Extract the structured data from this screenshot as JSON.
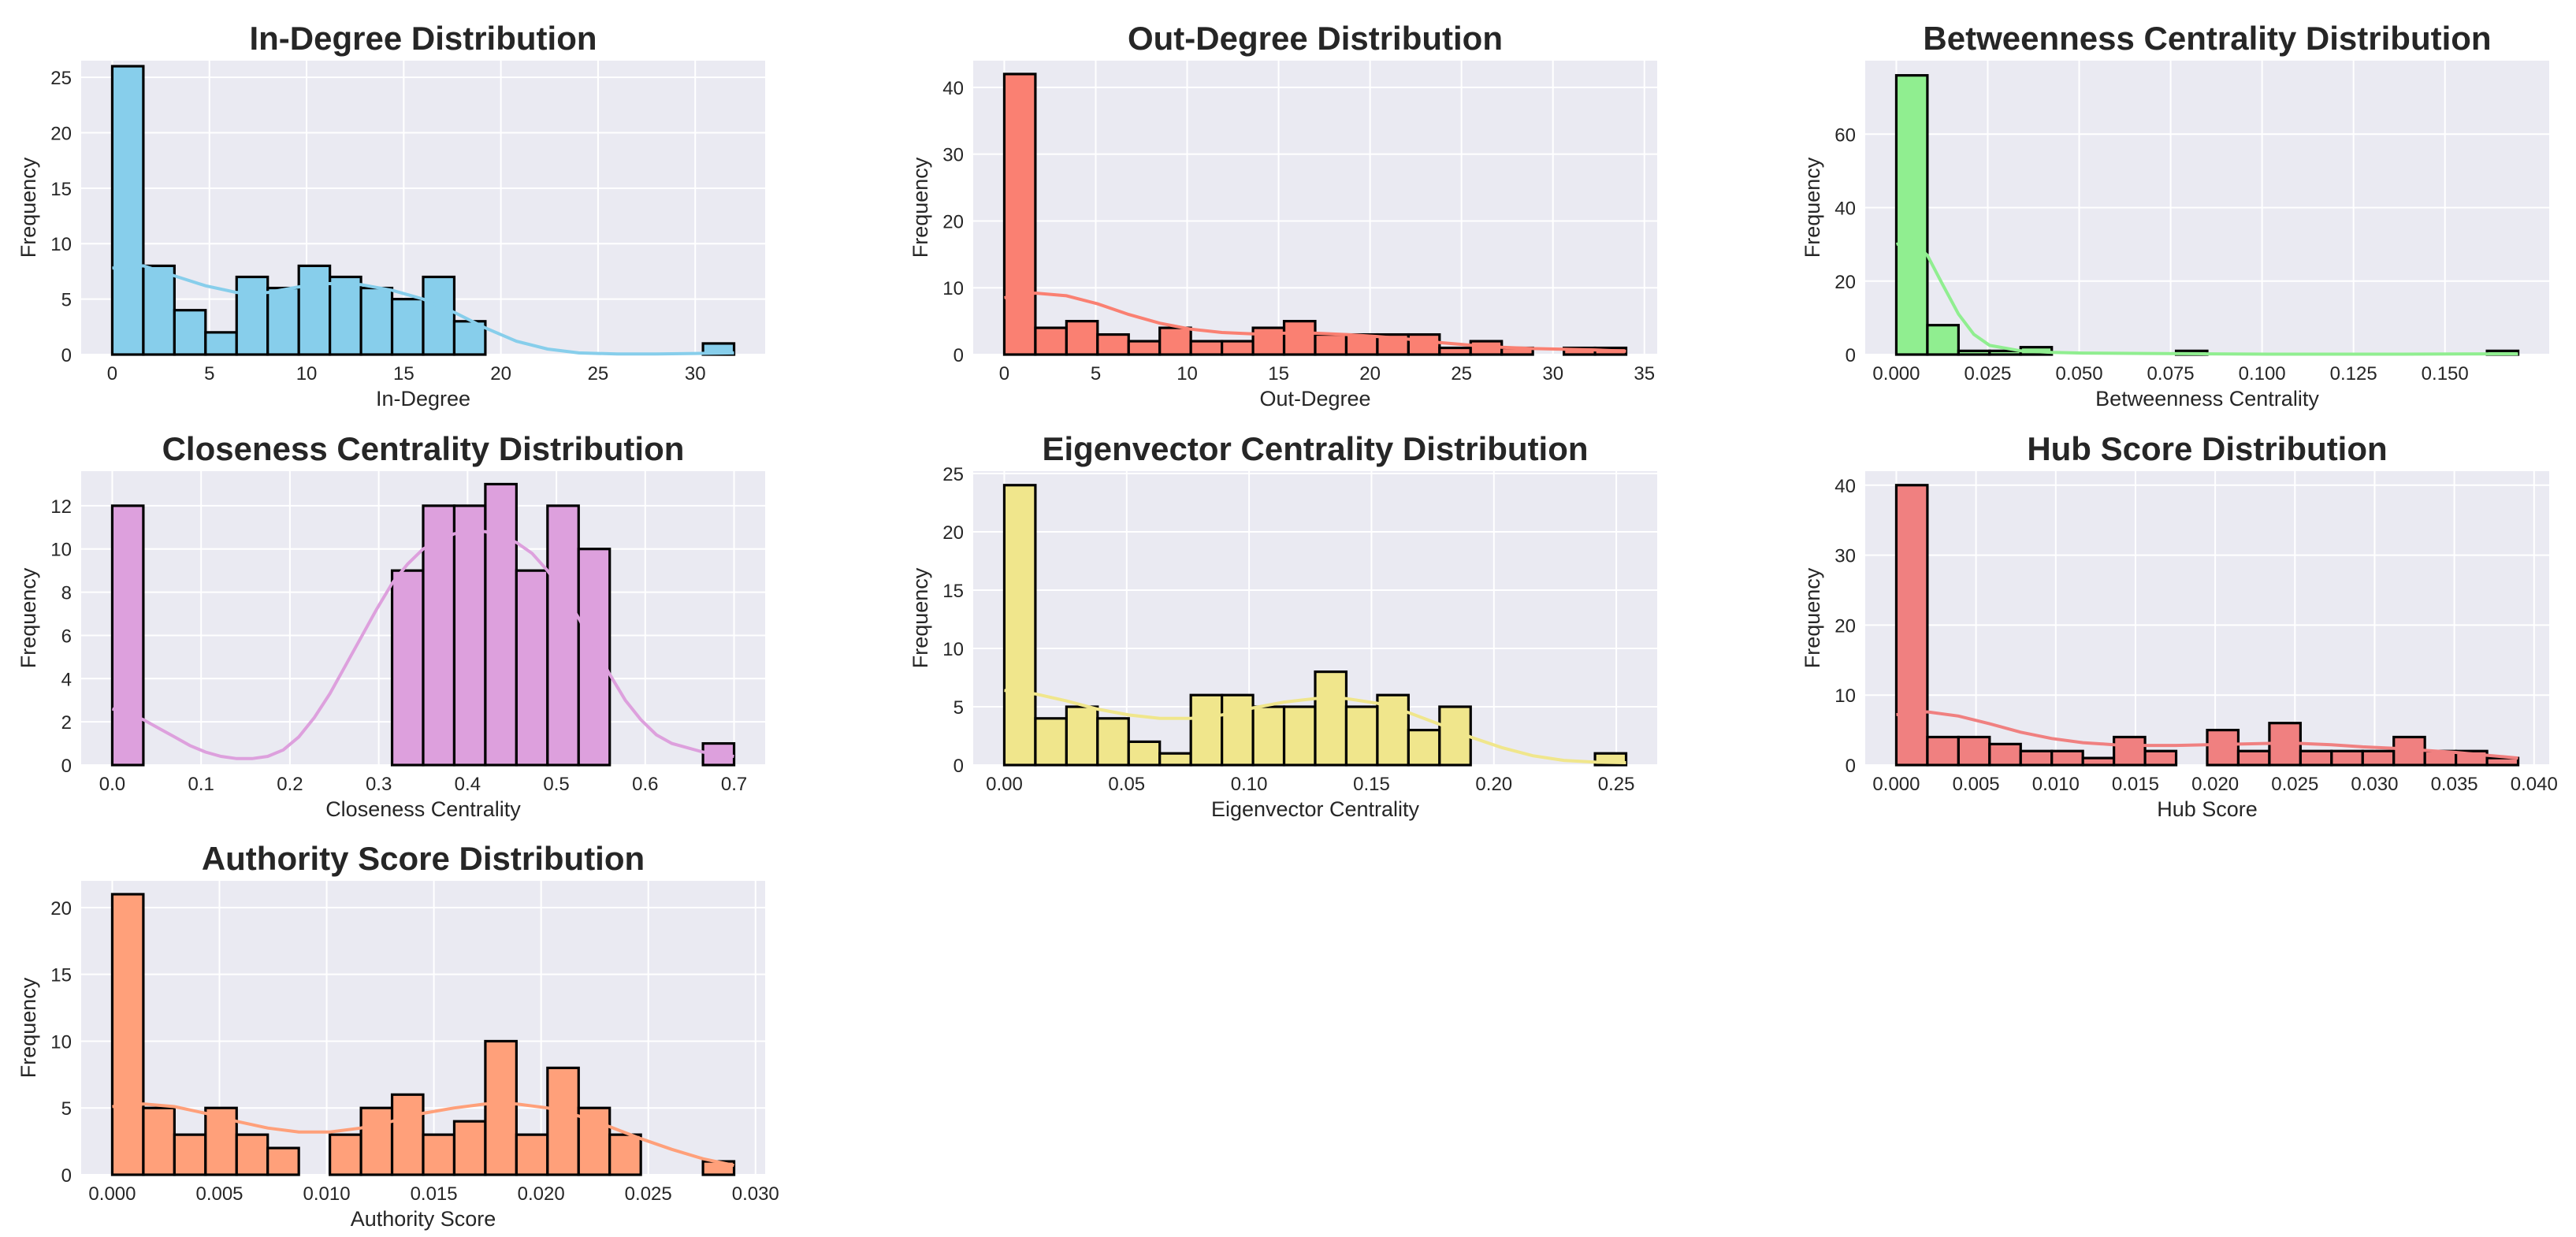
{
  "chart_data": [
    {
      "type": "bar",
      "title": "In-Degree Distribution",
      "xlabel": "In-Degree",
      "ylabel": "Frequency",
      "xlim": [
        -1.6,
        33.6
      ],
      "ylim": [
        0,
        26.5
      ],
      "xticks": [
        0,
        5,
        10,
        15,
        20,
        25,
        30
      ],
      "xtick_labels": [
        "0",
        "5",
        "10",
        "15",
        "20",
        "25",
        "30"
      ],
      "yticks": [
        0,
        5,
        10,
        15,
        20,
        25
      ],
      "ytick_labels": [
        "0",
        "5",
        "10",
        "15",
        "20",
        "25"
      ],
      "bin_start": 0,
      "bin_width": 1.6,
      "values": [
        26,
        8,
        4,
        2,
        7,
        6,
        8,
        7,
        6,
        5,
        7,
        3,
        0,
        0,
        0,
        0,
        0,
        0,
        0,
        1
      ],
      "color": "#87CEEB",
      "kde": [
        [
          0,
          7.8
        ],
        [
          1.6,
          8.0
        ],
        [
          3.2,
          7.1
        ],
        [
          4.8,
          6.2
        ],
        [
          6.4,
          5.6
        ],
        [
          8,
          5.6
        ],
        [
          9.6,
          6.1
        ],
        [
          11.2,
          6.4
        ],
        [
          12.8,
          6.3
        ],
        [
          14.4,
          5.8
        ],
        [
          16,
          5.0
        ],
        [
          17.6,
          3.8
        ],
        [
          19.2,
          2.4
        ],
        [
          20.8,
          1.2
        ],
        [
          22.4,
          0.5
        ],
        [
          24,
          0.15
        ],
        [
          26,
          0.05
        ],
        [
          28,
          0.05
        ],
        [
          30,
          0.1
        ],
        [
          32,
          0.15
        ]
      ]
    },
    {
      "type": "bar",
      "title": "Out-Degree Distribution",
      "xlabel": "Out-Degree",
      "ylabel": "Frequency",
      "xlim": [
        -1.7,
        35.7
      ],
      "ylim": [
        0,
        44
      ],
      "xticks": [
        0,
        5,
        10,
        15,
        20,
        25,
        30,
        35
      ],
      "xtick_labels": [
        "0",
        "5",
        "10",
        "15",
        "20",
        "25",
        "30",
        "35"
      ],
      "yticks": [
        0,
        10,
        20,
        30,
        40
      ],
      "ytick_labels": [
        "0",
        "10",
        "20",
        "30",
        "40"
      ],
      "bin_start": 0,
      "bin_width": 1.7,
      "values": [
        42,
        4,
        5,
        3,
        2,
        4,
        2,
        2,
        4,
        5,
        3,
        3,
        3,
        3,
        1,
        2,
        1,
        0,
        1,
        1
      ],
      "color": "#FA8072",
      "kde": [
        [
          0,
          8.5
        ],
        [
          1.7,
          9.2
        ],
        [
          3.4,
          8.8
        ],
        [
          5.1,
          7.6
        ],
        [
          6.8,
          6.0
        ],
        [
          8.5,
          4.7
        ],
        [
          10.2,
          3.8
        ],
        [
          11.9,
          3.3
        ],
        [
          13.6,
          3.1
        ],
        [
          15.3,
          3.2
        ],
        [
          17,
          3.2
        ],
        [
          18.7,
          3.0
        ],
        [
          20.4,
          2.7
        ],
        [
          22.1,
          2.3
        ],
        [
          23.8,
          1.8
        ],
        [
          25.5,
          1.4
        ],
        [
          27.2,
          1.1
        ],
        [
          28.9,
          0.9
        ],
        [
          30.6,
          0.8
        ],
        [
          32.3,
          0.7
        ],
        [
          34,
          0.5
        ]
      ]
    },
    {
      "type": "bar",
      "title": "Betweenness Centrality Distribution",
      "xlabel": "Betweenness Centrality",
      "ylabel": "Frequency",
      "xlim": [
        -0.0085,
        0.1785
      ],
      "ylim": [
        0,
        80
      ],
      "xticks": [
        0,
        0.025,
        0.05,
        0.075,
        0.1,
        0.125,
        0.15
      ],
      "xtick_labels": [
        "0.000",
        "0.025",
        "0.050",
        "0.075",
        "0.100",
        "0.125",
        "0.150"
      ],
      "yticks": [
        0,
        20,
        40,
        60
      ],
      "ytick_labels": [
        "0",
        "20",
        "40",
        "60"
      ],
      "bin_start": 0,
      "bin_width": 0.0085,
      "values": [
        76,
        8,
        1,
        1,
        2,
        0,
        0,
        0,
        0,
        1,
        0,
        0,
        0,
        0,
        0,
        0,
        0,
        0,
        0,
        1
      ],
      "color": "#90EE90",
      "kde": [
        [
          0,
          30
        ],
        [
          0.0042,
          31
        ],
        [
          0.0085,
          27
        ],
        [
          0.0127,
          19
        ],
        [
          0.017,
          11
        ],
        [
          0.0212,
          5.5
        ],
        [
          0.0255,
          2.5
        ],
        [
          0.034,
          1.0
        ],
        [
          0.0425,
          0.6
        ],
        [
          0.051,
          0.4
        ],
        [
          0.068,
          0.3
        ],
        [
          0.085,
          0.2
        ],
        [
          0.102,
          0.1
        ],
        [
          0.119,
          0.1
        ],
        [
          0.136,
          0.1
        ],
        [
          0.153,
          0.15
        ],
        [
          0.17,
          0.2
        ]
      ]
    },
    {
      "type": "bar",
      "title": "Closeness Centrality Distribution",
      "xlabel": "Closeness Centrality",
      "ylabel": "Frequency",
      "xlim": [
        -0.035,
        0.735
      ],
      "ylim": [
        0,
        13.6
      ],
      "xticks": [
        0,
        0.1,
        0.2,
        0.3,
        0.4,
        0.5,
        0.6,
        0.7
      ],
      "xtick_labels": [
        "0.0",
        "0.1",
        "0.2",
        "0.3",
        "0.4",
        "0.5",
        "0.6",
        "0.7"
      ],
      "yticks": [
        0,
        2,
        4,
        6,
        8,
        10,
        12
      ],
      "ytick_labels": [
        "0",
        "2",
        "4",
        "6",
        "8",
        "10",
        "12"
      ],
      "bin_start": 0,
      "bin_width": 0.035,
      "values": [
        12,
        0,
        0,
        0,
        0,
        0,
        0,
        0,
        0,
        9,
        12,
        12,
        13,
        9,
        12,
        10,
        0,
        0,
        0,
        1
      ],
      "color": "#DDA0DD",
      "kde": [
        [
          0,
          2.6
        ],
        [
          0.0175,
          2.4
        ],
        [
          0.035,
          2.1
        ],
        [
          0.0525,
          1.7
        ],
        [
          0.07,
          1.3
        ],
        [
          0.0875,
          0.9
        ],
        [
          0.105,
          0.6
        ],
        [
          0.1225,
          0.4
        ],
        [
          0.14,
          0.3
        ],
        [
          0.1575,
          0.3
        ],
        [
          0.175,
          0.4
        ],
        [
          0.1925,
          0.7
        ],
        [
          0.21,
          1.3
        ],
        [
          0.2275,
          2.2
        ],
        [
          0.245,
          3.3
        ],
        [
          0.2625,
          4.6
        ],
        [
          0.28,
          5.9
        ],
        [
          0.2975,
          7.2
        ],
        [
          0.315,
          8.4
        ],
        [
          0.3325,
          9.3
        ],
        [
          0.35,
          10.0
        ],
        [
          0.3675,
          10.4
        ],
        [
          0.385,
          10.7
        ],
        [
          0.4025,
          10.8
        ],
        [
          0.42,
          10.8
        ],
        [
          0.4375,
          10.6
        ],
        [
          0.455,
          10.3
        ],
        [
          0.4725,
          9.8
        ],
        [
          0.49,
          9.0
        ],
        [
          0.5075,
          8.0
        ],
        [
          0.525,
          6.8
        ],
        [
          0.5425,
          5.5
        ],
        [
          0.56,
          4.2
        ],
        [
          0.5775,
          3.0
        ],
        [
          0.595,
          2.1
        ],
        [
          0.6125,
          1.4
        ],
        [
          0.63,
          1.0
        ],
        [
          0.6475,
          0.8
        ],
        [
          0.665,
          0.6
        ],
        [
          0.6825,
          0.5
        ],
        [
          0.7,
          0.4
        ]
      ]
    },
    {
      "type": "bar",
      "title": "Eigenvector Centrality Distribution",
      "xlabel": "Eigenvector Centrality",
      "ylabel": "Frequency",
      "xlim": [
        -0.0127,
        0.2667
      ],
      "ylim": [
        0,
        25.2
      ],
      "xticks": [
        0,
        0.05,
        0.1,
        0.15,
        0.2,
        0.25
      ],
      "xtick_labels": [
        "0.00",
        "0.05",
        "0.10",
        "0.15",
        "0.20",
        "0.25"
      ],
      "yticks": [
        0,
        5,
        10,
        15,
        20,
        25
      ],
      "ytick_labels": [
        "0",
        "5",
        "10",
        "15",
        "20",
        "25"
      ],
      "bin_start": 0,
      "bin_width": 0.0127,
      "values": [
        24,
        4,
        5,
        4,
        2,
        1,
        6,
        6,
        5,
        5,
        8,
        5,
        6,
        3,
        5,
        0,
        0,
        0,
        0,
        1
      ],
      "color": "#F0E68C",
      "kde": [
        [
          0,
          6.4
        ],
        [
          0.0127,
          6.1
        ],
        [
          0.0254,
          5.5
        ],
        [
          0.0381,
          4.8
        ],
        [
          0.0508,
          4.3
        ],
        [
          0.0635,
          4.0
        ],
        [
          0.0762,
          4.0
        ],
        [
          0.0889,
          4.3
        ],
        [
          0.1016,
          4.9
        ],
        [
          0.1143,
          5.4
        ],
        [
          0.127,
          5.7
        ],
        [
          0.1397,
          5.7
        ],
        [
          0.1524,
          5.3
        ],
        [
          0.1651,
          4.5
        ],
        [
          0.1778,
          3.5
        ],
        [
          0.1905,
          2.4
        ],
        [
          0.2032,
          1.5
        ],
        [
          0.2159,
          0.8
        ],
        [
          0.2286,
          0.4
        ],
        [
          0.2413,
          0.25
        ],
        [
          0.254,
          0.2
        ]
      ]
    },
    {
      "type": "bar",
      "title": "Hub Score Distribution",
      "xlabel": "Hub Score",
      "ylabel": "Frequency",
      "xlim": [
        -0.00195,
        0.04095
      ],
      "ylim": [
        0,
        42
      ],
      "xticks": [
        0,
        0.005,
        0.01,
        0.015,
        0.02,
        0.025,
        0.03,
        0.035,
        0.04
      ],
      "xtick_labels": [
        "0.000",
        "0.005",
        "0.010",
        "0.015",
        "0.020",
        "0.025",
        "0.030",
        "0.035",
        "0.040"
      ],
      "yticks": [
        0,
        10,
        20,
        30,
        40
      ],
      "ytick_labels": [
        "0",
        "10",
        "20",
        "30",
        "40"
      ],
      "bin_start": 0,
      "bin_width": 0.00195,
      "values": [
        40,
        4,
        4,
        3,
        2,
        2,
        1,
        4,
        2,
        0,
        5,
        2,
        6,
        2,
        2,
        2,
        4,
        2,
        2,
        1
      ],
      "color": "#F08080",
      "kde": [
        [
          0,
          7.2
        ],
        [
          0.00195,
          7.6
        ],
        [
          0.0039,
          7.0
        ],
        [
          0.00585,
          5.9
        ],
        [
          0.0078,
          4.7
        ],
        [
          0.00975,
          3.8
        ],
        [
          0.0117,
          3.2
        ],
        [
          0.01365,
          2.9
        ],
        [
          0.0156,
          2.8
        ],
        [
          0.01755,
          2.8
        ],
        [
          0.0195,
          2.9
        ],
        [
          0.02145,
          3.0
        ],
        [
          0.0234,
          3.1
        ],
        [
          0.02535,
          3.1
        ],
        [
          0.0273,
          2.9
        ],
        [
          0.02925,
          2.6
        ],
        [
          0.0312,
          2.4
        ],
        [
          0.03315,
          2.1
        ],
        [
          0.0351,
          1.8
        ],
        [
          0.03705,
          1.4
        ],
        [
          0.039,
          1.0
        ]
      ]
    },
    {
      "type": "bar",
      "title": "Authority Score Distribution",
      "xlabel": "Authority Score",
      "ylabel": "Frequency",
      "xlim": [
        -0.00145,
        0.03045
      ],
      "ylim": [
        0,
        22
      ],
      "xticks": [
        0,
        0.005,
        0.01,
        0.015,
        0.02,
        0.025,
        0.03
      ],
      "xtick_labels": [
        "0.000",
        "0.005",
        "0.010",
        "0.015",
        "0.020",
        "0.025",
        "0.030"
      ],
      "yticks": [
        0,
        5,
        10,
        15,
        20
      ],
      "ytick_labels": [
        "0",
        "5",
        "10",
        "15",
        "20"
      ],
      "bin_start": 0,
      "bin_width": 0.00145,
      "values": [
        21,
        5,
        3,
        5,
        3,
        2,
        0,
        3,
        5,
        6,
        3,
        4,
        10,
        3,
        8,
        5,
        3,
        0,
        0,
        1
      ],
      "color": "#FFA07A",
      "kde": [
        [
          0,
          5.1
        ],
        [
          0.00145,
          5.3
        ],
        [
          0.0029,
          5.1
        ],
        [
          0.00435,
          4.6
        ],
        [
          0.0058,
          4.0
        ],
        [
          0.00725,
          3.5
        ],
        [
          0.0087,
          3.2
        ],
        [
          0.01015,
          3.2
        ],
        [
          0.0116,
          3.5
        ],
        [
          0.01305,
          4.0
        ],
        [
          0.0145,
          4.6
        ],
        [
          0.01595,
          5.0
        ],
        [
          0.0174,
          5.3
        ],
        [
          0.01885,
          5.3
        ],
        [
          0.0203,
          5.0
        ],
        [
          0.02175,
          4.4
        ],
        [
          0.0232,
          3.6
        ],
        [
          0.02465,
          2.7
        ],
        [
          0.0261,
          1.9
        ],
        [
          0.02755,
          1.2
        ],
        [
          0.029,
          0.7
        ]
      ]
    }
  ]
}
